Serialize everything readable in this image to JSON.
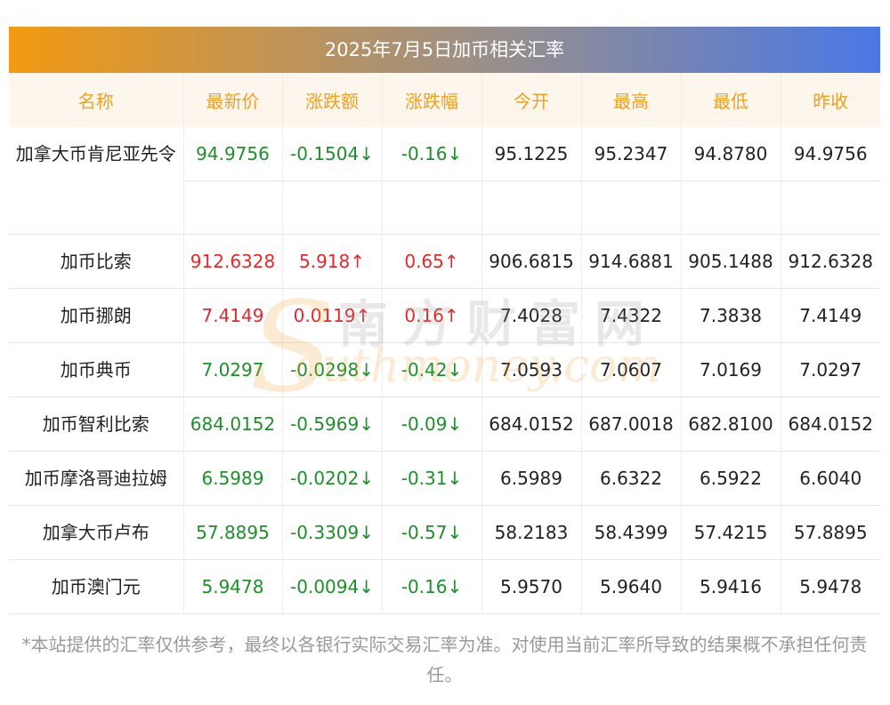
{
  "title": "2025年7月5日加币相关汇率",
  "colors": {
    "up": "#e8262a",
    "down": "#1e8f2a",
    "header_text": "#f0a020"
  },
  "columns": [
    "名称",
    "最新价",
    "涨跌额",
    "涨跌幅",
    "今开",
    "最高",
    "最低",
    "昨收"
  ],
  "rows": [
    {
      "name": "加拿大币肯尼亚先令",
      "latest": "94.9756",
      "change": "-0.1504↓",
      "pct": "-0.16↓",
      "open": "95.1225",
      "high": "95.2347",
      "low": "94.8780",
      "prev": "94.9756",
      "dir": "down"
    },
    {
      "name": "加币比索",
      "latest": "912.6328",
      "change": "5.918↑",
      "pct": "0.65↑",
      "open": "906.6815",
      "high": "914.6881",
      "low": "905.1488",
      "prev": "912.6328",
      "dir": "up"
    },
    {
      "name": "加币挪朗",
      "latest": "7.4149",
      "change": "0.0119↑",
      "pct": "0.16↑",
      "open": "7.4028",
      "high": "7.4322",
      "low": "7.3838",
      "prev": "7.4149",
      "dir": "up"
    },
    {
      "name": "加币典币",
      "latest": "7.0297",
      "change": "-0.0298↓",
      "pct": "-0.42↓",
      "open": "7.0593",
      "high": "7.0607",
      "low": "7.0169",
      "prev": "7.0297",
      "dir": "down"
    },
    {
      "name": "加币智利比索",
      "latest": "684.0152",
      "change": "-0.5969↓",
      "pct": "-0.09↓",
      "open": "684.0152",
      "high": "687.0018",
      "low": "682.8100",
      "prev": "684.0152",
      "dir": "down"
    },
    {
      "name": "加币摩洛哥迪拉姆",
      "latest": "6.5989",
      "change": "-0.0202↓",
      "pct": "-0.31↓",
      "open": "6.5989",
      "high": "6.6322",
      "low": "6.5922",
      "prev": "6.6040",
      "dir": "down"
    },
    {
      "name": "加拿大币卢布",
      "latest": "57.8895",
      "change": "-0.3309↓",
      "pct": "-0.57↓",
      "open": "58.2183",
      "high": "58.4399",
      "low": "57.4215",
      "prev": "57.8895",
      "dir": "down"
    },
    {
      "name": "加币澳门元",
      "latest": "5.9478",
      "change": "-0.0094↓",
      "pct": "-0.16↓",
      "open": "5.9570",
      "high": "5.9640",
      "low": "5.9416",
      "prev": "5.9478",
      "dir": "down"
    }
  ],
  "watermark": {
    "cn": "南方财富网",
    "en": "outhmoney.com",
    "s": "S"
  },
  "note": "*本站提供的汇率仅供参考，最终以各银行实际交易汇率为准。对使用当前汇率所导致的结果概不承担任何责任。"
}
